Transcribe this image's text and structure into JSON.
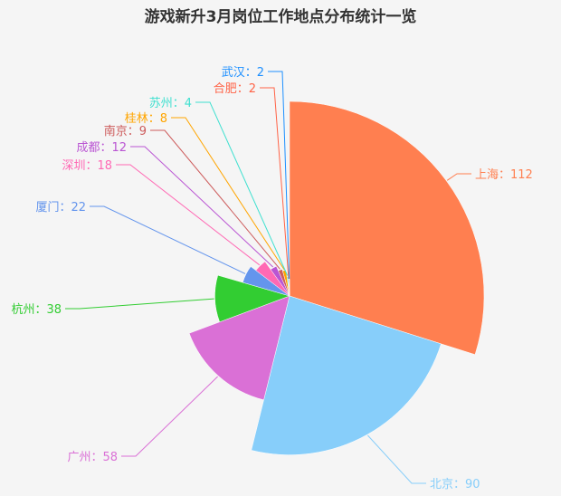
{
  "chart_data": {
    "type": "pie",
    "variant": "rose-radius",
    "title": "游戏新升3月岗位工作地点分布统计一览",
    "label_separator": "：",
    "slices": [
      {
        "name": "上海",
        "value": 112,
        "color": "#ff7f50"
      },
      {
        "name": "北京",
        "value": 90,
        "color": "#87cefa"
      },
      {
        "name": "广州",
        "value": 58,
        "color": "#da70d6"
      },
      {
        "name": "杭州",
        "value": 38,
        "color": "#32cd32"
      },
      {
        "name": "厦门",
        "value": 22,
        "color": "#6495ed"
      },
      {
        "name": "深圳",
        "value": 18,
        "color": "#ff69b4"
      },
      {
        "name": "成都",
        "value": 12,
        "color": "#ba55d3"
      },
      {
        "name": "南京",
        "value": 9,
        "color": "#cd5c5c"
      },
      {
        "name": "桂林",
        "value": 8,
        "color": "#ffa500"
      },
      {
        "name": "苏州",
        "value": 4,
        "color": "#40e0d0"
      },
      {
        "name": "合肥",
        "value": 2,
        "color": "#ff6347"
      },
      {
        "name": "武汉",
        "value": 2,
        "color": "#1e90ff"
      }
    ]
  }
}
